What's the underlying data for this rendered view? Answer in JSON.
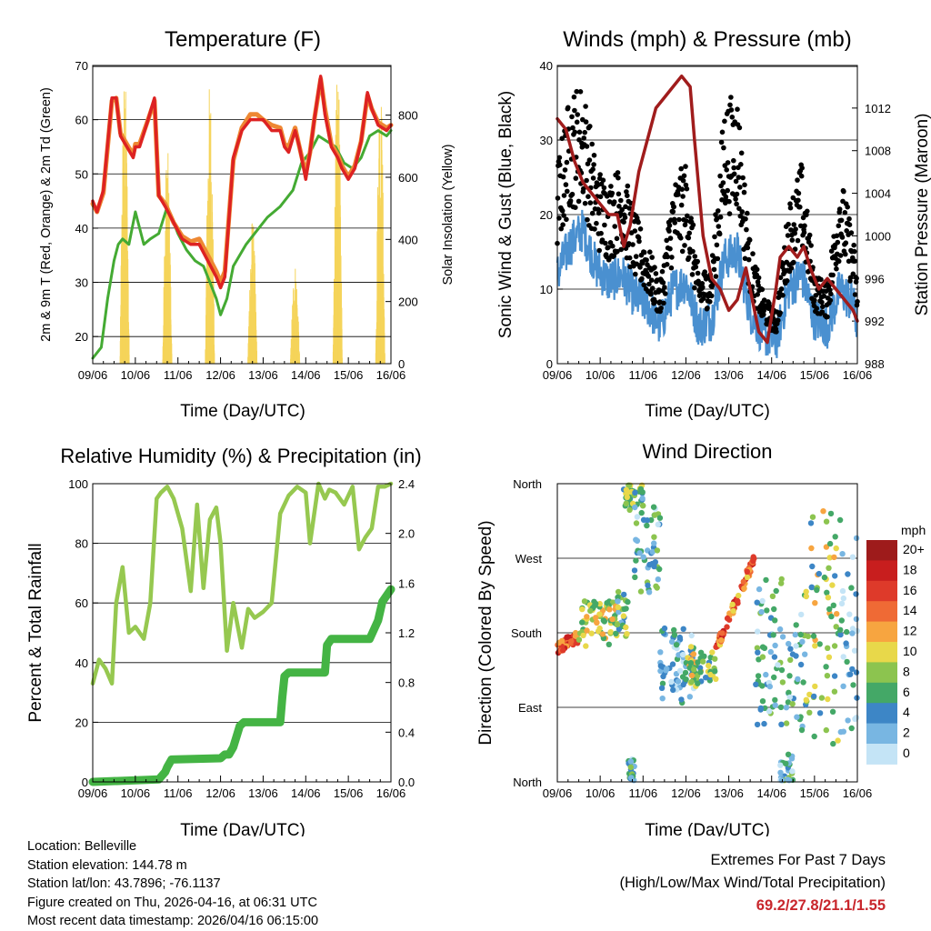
{
  "colors": {
    "t2m": "#dd2222",
    "t9m": "#ee8833",
    "td2m": "#44aa33",
    "solar": "#f5d45a",
    "wind": "#4a90d0",
    "gust": "#000000",
    "pressure": "#a01c1c",
    "rh": "#96c850",
    "precip": "#44b444",
    "extremes": "#c8262c"
  },
  "time_ticks": [
    "09/06",
    "10/06",
    "11/06",
    "12/06",
    "13/06",
    "14/06",
    "15/06",
    "16/06"
  ],
  "chart_data": [
    {
      "type": "line",
      "id": "temperature",
      "title": "Temperature (F)",
      "xlabel": "Time (Day/UTC)",
      "ylabel": "2m & 9m T (Red, Orange) & 2m Td (Green)",
      "ylabel_right": "Solar Insolation (Yellow)",
      "ylim": [
        15,
        70
      ],
      "yticks": [
        20,
        30,
        40,
        50,
        60,
        70
      ],
      "ylim_right": [
        0,
        960
      ],
      "yticks_right": [
        0,
        200,
        400,
        600,
        800
      ],
      "x_range": [
        0,
        7
      ],
      "series": [
        {
          "name": "2m T",
          "x": [
            0,
            0.1,
            0.25,
            0.45,
            0.55,
            0.65,
            0.8,
            0.95,
            1.0,
            1.1,
            1.3,
            1.45,
            1.55,
            1.7,
            1.9,
            2.1,
            2.3,
            2.5,
            2.7,
            2.9,
            3.0,
            3.1,
            3.3,
            3.5,
            3.7,
            3.85,
            4.0,
            4.2,
            4.4,
            4.5,
            4.6,
            4.75,
            4.85,
            5.0,
            5.1,
            5.2,
            5.35,
            5.45,
            5.6,
            5.75,
            5.85,
            6.0,
            6.15,
            6.3,
            6.45,
            6.55,
            6.7,
            6.9,
            7.0
          ],
          "values": [
            45,
            43,
            47,
            64,
            64,
            57,
            55,
            53,
            55,
            55,
            60,
            64,
            46,
            44,
            41,
            38,
            37,
            37,
            34,
            31,
            29,
            31,
            53,
            58,
            60,
            60,
            60,
            58,
            58,
            55,
            54,
            58,
            55,
            49,
            54,
            60,
            68,
            61,
            55,
            53,
            51,
            49,
            51,
            56,
            65,
            62,
            59,
            58,
            59
          ]
        },
        {
          "name": "9m T",
          "x": [
            0,
            0.1,
            0.25,
            0.45,
            0.55,
            0.65,
            0.8,
            0.95,
            1.0,
            1.1,
            1.3,
            1.45,
            1.55,
            1.7,
            1.9,
            2.1,
            2.3,
            2.5,
            2.7,
            2.9,
            3.0,
            3.1,
            3.3,
            3.5,
            3.7,
            3.85,
            4.0,
            4.2,
            4.4,
            4.5,
            4.6,
            4.75,
            4.85,
            5.0,
            5.1,
            5.2,
            5.35,
            5.45,
            5.6,
            5.75,
            5.85,
            6.0,
            6.15,
            6.3,
            6.45,
            6.55,
            6.7,
            6.9,
            7.0
          ],
          "values": [
            44.5,
            43,
            46.5,
            63.5,
            64,
            57.5,
            55.5,
            53.5,
            55.5,
            55.5,
            60,
            63.5,
            46,
            44.5,
            41,
            38.5,
            37.5,
            38,
            35,
            32,
            30,
            32,
            52.5,
            58.5,
            61,
            61,
            60,
            59,
            58.5,
            55.5,
            55,
            58.5,
            55,
            50,
            54,
            60,
            67.5,
            62,
            55.5,
            53.5,
            51.5,
            49.5,
            51.5,
            56,
            64.5,
            62,
            59.5,
            58.5,
            59
          ]
        },
        {
          "name": "2m Td",
          "x": [
            0,
            0.2,
            0.35,
            0.5,
            0.6,
            0.7,
            0.85,
            1.0,
            1.2,
            1.35,
            1.55,
            1.75,
            2.0,
            2.2,
            2.4,
            2.6,
            2.75,
            2.9,
            3.0,
            3.15,
            3.3,
            3.6,
            3.9,
            4.1,
            4.4,
            4.7,
            4.9,
            5.1,
            5.3,
            5.5,
            5.7,
            5.9,
            6.1,
            6.3,
            6.5,
            6.7,
            6.9,
            7.0
          ],
          "values": [
            16,
            18,
            27,
            34,
            37,
            38,
            37,
            43,
            37,
            38,
            39,
            44,
            39,
            36,
            34,
            33,
            30,
            27,
            24,
            27,
            33,
            37,
            40,
            42,
            44,
            47,
            52,
            54,
            57,
            56,
            55,
            52,
            51,
            53,
            57,
            58,
            57,
            58
          ]
        },
        {
          "name": "Solar Insolation",
          "axis": "right",
          "type": "diurnal",
          "days": 7,
          "peak_phase": 0.75,
          "width": 0.22,
          "daily_peaks": [
            950,
            700,
            920,
            480,
            330,
            950,
            950
          ]
        }
      ]
    },
    {
      "type": "scatter",
      "id": "winds",
      "title": "Winds (mph) & Pressure (mb)",
      "xlabel": "Time (Day/UTC)",
      "ylabel": "Sonic Wind & Gust (Blue, Black)",
      "ylabel_right": "Station Pressure (Maroon)",
      "ylim": [
        0,
        40
      ],
      "yticks": [
        0,
        10,
        20,
        30,
        40
      ],
      "ylim_right": [
        988,
        1016
      ],
      "yticks_right": [
        988,
        992,
        996,
        1000,
        1004,
        1008,
        1012
      ],
      "x_range": [
        0,
        7
      ],
      "series": [
        {
          "name": "Sonic Wind",
          "x": [
            0,
            0.3,
            0.6,
            0.9,
            1.2,
            1.5,
            1.8,
            2.1,
            2.4,
            2.7,
            3.0,
            3.3,
            3.6,
            3.9,
            4.2,
            4.5,
            4.8,
            5.1,
            5.4,
            5.7,
            6.0,
            6.3,
            6.6,
            6.9,
            7.0
          ],
          "values": [
            12,
            16,
            18,
            13,
            11,
            12,
            9,
            8,
            5,
            10,
            11,
            5,
            6,
            14,
            15,
            7,
            4,
            3,
            10,
            12,
            6,
            5,
            10,
            8,
            5
          ]
        },
        {
          "name": "Gust",
          "x": [
            0,
            0.3,
            0.6,
            0.9,
            1.2,
            1.5,
            1.8,
            2.1,
            2.4,
            2.7,
            3.0,
            3.3,
            3.6,
            3.9,
            4.2,
            4.5,
            4.8,
            5.1,
            5.4,
            5.7,
            6.0,
            6.3,
            6.6,
            6.9,
            7.0
          ],
          "values": [
            20,
            27,
            28,
            20,
            18,
            20,
            15,
            12,
            8,
            18,
            20,
            9,
            10,
            26,
            27,
            12,
            7,
            5,
            16,
            20,
            9,
            8,
            19,
            13,
            8
          ]
        },
        {
          "name": "Station Pressure",
          "axis": "right",
          "x": [
            0,
            0.2,
            0.4,
            0.6,
            0.8,
            1.0,
            1.2,
            1.4,
            1.55,
            1.7,
            1.9,
            2.1,
            2.3,
            2.5,
            2.7,
            2.9,
            3.1,
            3.2,
            3.4,
            3.6,
            3.8,
            4.0,
            4.2,
            4.4,
            4.5,
            4.7,
            4.9,
            5.1,
            5.2,
            5.4,
            5.6,
            5.75,
            5.9,
            6.1,
            6.3,
            6.5,
            6.7,
            6.9,
            7.0
          ],
          "values": [
            1011,
            1010,
            1007,
            1005,
            1004,
            1003,
            1002,
            1002,
            999,
            1001,
            1006,
            1009,
            1012,
            1013,
            1014,
            1015,
            1014,
            1009,
            1000,
            996,
            995,
            993,
            994,
            997,
            995,
            991,
            990,
            995,
            998,
            999,
            998,
            999,
            997,
            995,
            996,
            995,
            994,
            993,
            992
          ]
        }
      ]
    },
    {
      "type": "line",
      "id": "humidity",
      "title": "Relative Humidity (%) & Precipitation (in)",
      "xlabel": "Time (Day/UTC)",
      "ylabel": "Percent & Total Rainfall",
      "ylim": [
        0,
        100
      ],
      "yticks": [
        0,
        20,
        40,
        60,
        80,
        100
      ],
      "ylim_right": [
        0,
        2.4
      ],
      "yticks_right": [
        0.0,
        0.4,
        0.8,
        1.2,
        1.6,
        2.0,
        2.4
      ],
      "x_range": [
        0,
        7
      ],
      "series": [
        {
          "name": "Relative Humidity",
          "x": [
            0,
            0.15,
            0.3,
            0.45,
            0.55,
            0.7,
            0.85,
            1.0,
            1.2,
            1.35,
            1.5,
            1.6,
            1.75,
            1.9,
            2.1,
            2.3,
            2.45,
            2.6,
            2.75,
            2.9,
            3.0,
            3.15,
            3.3,
            3.5,
            3.65,
            3.8,
            4.0,
            4.2,
            4.4,
            4.6,
            4.8,
            5.0,
            5.1,
            5.3,
            5.45,
            5.55,
            5.7,
            5.9,
            6.1,
            6.25,
            6.4,
            6.55,
            6.7,
            6.85,
            7.0
          ],
          "values": [
            33,
            41,
            38,
            33,
            60,
            72,
            50,
            52,
            48,
            60,
            95,
            97,
            99,
            95,
            85,
            64,
            93,
            65,
            88,
            92,
            80,
            44,
            60,
            45,
            58,
            55,
            57,
            60,
            90,
            96,
            99,
            97,
            80,
            100,
            95,
            98,
            97,
            93,
            99,
            78,
            82,
            85,
            99,
            99,
            100
          ]
        },
        {
          "name": "Total Precipitation",
          "axis": "right",
          "x": [
            0,
            1.55,
            1.7,
            1.75,
            1.85,
            3.0,
            3.1,
            3.2,
            3.3,
            3.45,
            3.55,
            4.4,
            4.45,
            4.5,
            4.6,
            5.45,
            5.5,
            5.6,
            6.5,
            6.7,
            6.8,
            7.0
          ],
          "values": [
            0.0,
            0.02,
            0.08,
            0.12,
            0.18,
            0.19,
            0.22,
            0.22,
            0.28,
            0.45,
            0.48,
            0.48,
            0.68,
            0.85,
            0.88,
            0.88,
            1.1,
            1.15,
            1.15,
            1.3,
            1.45,
            1.55
          ]
        }
      ]
    },
    {
      "type": "scatter",
      "id": "direction",
      "title": "Wind Direction",
      "xlabel": "Time (Day/UTC)",
      "ylabel": "Direction (Colored By Speed)",
      "yticks_labels": [
        "North",
        "East",
        "South",
        "West",
        "North"
      ],
      "ylim": [
        0,
        360
      ],
      "x_range": [
        0,
        7
      ],
      "legend_title": "mph",
      "legend_labels": [
        "20+",
        "18",
        "16",
        "14",
        "12",
        "10",
        "8",
        "6",
        "4",
        "2",
        "0"
      ],
      "legend_colors": [
        "#9e1b1b",
        "#c81e1e",
        "#de3a2a",
        "#ef6a35",
        "#f7a540",
        "#e8d84a",
        "#8cc44f",
        "#44a867",
        "#3d86c6",
        "#78b6e2",
        "#c4e4f6"
      ],
      "segments": [
        {
          "x": [
            0.0,
            0.5
          ],
          "dir": [
            162,
            175
          ],
          "speed": 15
        },
        {
          "x": [
            0.5,
            1.4
          ],
          "dir": [
            170,
            220
          ],
          "speed": 9
        },
        {
          "x": [
            1.4,
            1.65
          ],
          "dir": [
            180,
            225
          ],
          "speed": 6
        },
        {
          "x": [
            1.55,
            2.0
          ],
          "dir": [
            330,
            360
          ],
          "speed": 6
        },
        {
          "x": [
            1.65,
            1.8
          ],
          "dir": [
            0,
            25
          ],
          "speed": 4
        },
        {
          "x": [
            1.8,
            2.4
          ],
          "dir": [
            230,
            330
          ],
          "speed": 4
        },
        {
          "x": [
            2.4,
            3.2
          ],
          "dir": [
            100,
            185
          ],
          "speed": 3
        },
        {
          "x": [
            3.0,
            3.7
          ],
          "dir": [
            120,
            160
          ],
          "speed": 8
        },
        {
          "x": [
            3.7,
            4.6
          ],
          "dir": [
            160,
            270
          ],
          "speed": 14
        },
        {
          "x": [
            4.6,
            5.8
          ],
          "dir": [
            60,
            240
          ],
          "speed": 4
        },
        {
          "x": [
            5.2,
            5.5
          ],
          "dir": [
            0,
            30
          ],
          "speed": 4
        },
        {
          "x": [
            5.8,
            6.6
          ],
          "dir": [
            40,
            330
          ],
          "speed": 8
        },
        {
          "x": [
            6.6,
            7.0
          ],
          "dir": [
            60,
            300
          ],
          "speed": 3
        }
      ]
    }
  ],
  "info": {
    "location": "Location: Belleville",
    "elevation": "Station elevation: 144.78 m",
    "latlon": "Station lat/lon: 43.7896; -76.1137",
    "created": "Figure created on Thu, 2026-04-16, at 06:31 UTC",
    "latest": "Most recent data timestamp: 2026/04/16 06:15:00"
  },
  "extremes": {
    "title": "Extremes For Past 7 Days",
    "subtitle": "(High/Low/Max Wind/Total Precipitation)",
    "values": "69.2/27.8/21.1/1.55"
  }
}
